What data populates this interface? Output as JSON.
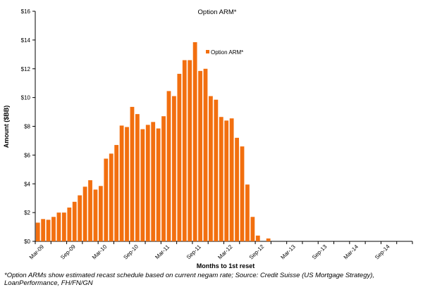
{
  "chart_data": {
    "type": "bar",
    "title": "Option ARM*",
    "xlabel": "Months to 1st reset",
    "ylabel": "Amount ($BB)",
    "ylim": [
      0,
      16
    ],
    "yticks": [
      0,
      2,
      4,
      6,
      8,
      10,
      12,
      14,
      16
    ],
    "ytick_labels": [
      "$0",
      "$2",
      "$4",
      "$6",
      "$8",
      "$10",
      "$12",
      "$14",
      "$16"
    ],
    "x_start": "Mar-09",
    "x_end": "Feb-15",
    "xtick_labels": [
      "Mar-09",
      "Sep-09",
      "Mar-10",
      "Sep-10",
      "Mar-11",
      "Sep-11",
      "Mar-12",
      "Sep-12",
      "Mar-13",
      "Sep-13",
      "Mar-14",
      "Sep-14"
    ],
    "grid": false,
    "legend_position": "top-right",
    "bar_color": "#F26F0F",
    "series": [
      {
        "name": "Option ARM*",
        "values": [
          1.3,
          1.55,
          1.5,
          1.7,
          2.0,
          2.0,
          2.35,
          2.75,
          3.2,
          3.8,
          4.25,
          3.6,
          3.85,
          5.75,
          6.1,
          6.7,
          8.05,
          7.95,
          9.35,
          8.85,
          7.8,
          8.1,
          8.3,
          7.85,
          8.7,
          10.45,
          10.1,
          11.65,
          12.6,
          12.6,
          13.85,
          11.85,
          12.0,
          10.1,
          9.85,
          8.65,
          8.4,
          8.55,
          7.2,
          6.6,
          3.95,
          1.7,
          0.4,
          0.0,
          0.2,
          0.0,
          0.0,
          0.0,
          0.0,
          0.0,
          0.0,
          0.0,
          0.0,
          0.0,
          0.0,
          0.0,
          0.0,
          0.0,
          0.0,
          0.0,
          0.0,
          0.0,
          0.0,
          0.0,
          0.0,
          0.0,
          0.0,
          0.0,
          0.0,
          0.0,
          0.0,
          0.0
        ]
      }
    ]
  },
  "footnote": "*Option ARMs show  estimated recast schedule based on  current negam rate; Source: Credit Suisse (US Mortgage Strategy), LoanPerformance, FH/FN/GN"
}
